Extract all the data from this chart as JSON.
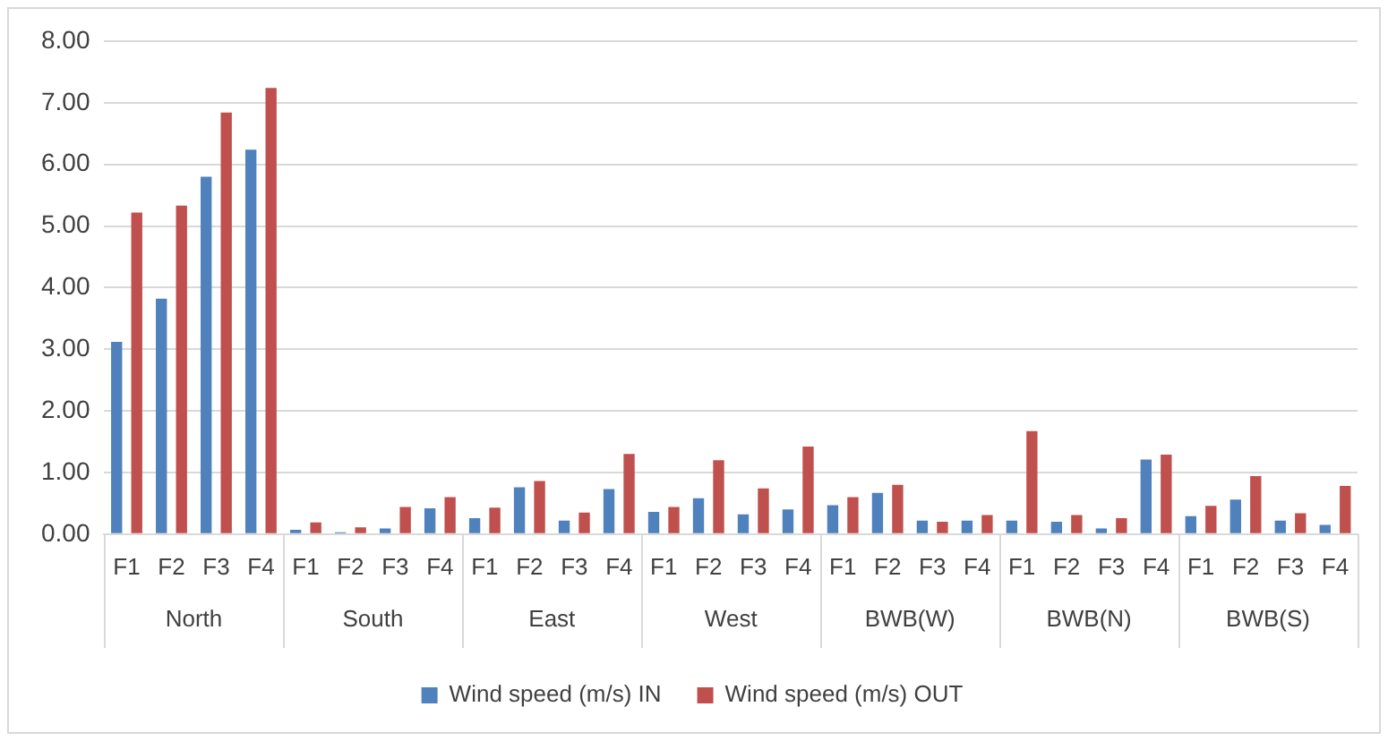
{
  "chart_data": {
    "type": "bar",
    "categories": [
      "F1",
      "F2",
      "F3",
      "F4",
      "F1",
      "F2",
      "F3",
      "F4",
      "F1",
      "F2",
      "F3",
      "F4",
      "F1",
      "F2",
      "F3",
      "F4",
      "F1",
      "F2",
      "F3",
      "F4",
      "F1",
      "F2",
      "F3",
      "F4",
      "F1",
      "F2",
      "F3",
      "F4"
    ],
    "annotations": [
      "North",
      "South",
      "East",
      "West",
      "BWB(W)",
      "BWB(N)",
      "BWB(S)"
    ],
    "series": [
      {
        "name": "Wind speed (m/s) IN",
        "color": "#4f81bd",
        "values": [
          3.12,
          3.82,
          5.8,
          6.24,
          0.07,
          0.03,
          0.09,
          0.42,
          0.26,
          0.76,
          0.22,
          0.73,
          0.36,
          0.58,
          0.32,
          0.4,
          0.47,
          0.67,
          0.22,
          0.22,
          0.22,
          0.2,
          0.09,
          1.21,
          0.29,
          0.56,
          0.22,
          0.15
        ]
      },
      {
        "name": "Wind speed (m/s) OUT",
        "color": "#c0504d",
        "values": [
          5.22,
          5.33,
          6.84,
          7.24,
          0.19,
          0.11,
          0.44,
          0.6,
          0.43,
          0.86,
          0.35,
          1.3,
          0.44,
          1.2,
          0.74,
          1.42,
          0.6,
          0.8,
          0.2,
          0.31,
          1.67,
          0.31,
          0.26,
          1.29,
          0.46,
          0.94,
          0.34,
          0.78
        ]
      }
    ],
    "ylim": [
      0,
      8
    ],
    "yticks": [
      {
        "value": 0,
        "label": "0.00"
      },
      {
        "value": 1,
        "label": "1.00"
      },
      {
        "value": 2,
        "label": "2.00"
      },
      {
        "value": 3,
        "label": "3.00"
      },
      {
        "value": 4,
        "label": "4.00"
      },
      {
        "value": 5,
        "label": "5.00"
      },
      {
        "value": 6,
        "label": "6.00"
      },
      {
        "value": 7,
        "label": "7.00"
      },
      {
        "value": 8,
        "label": "8.00"
      }
    ],
    "grid": "y",
    "legend": "bottom"
  }
}
